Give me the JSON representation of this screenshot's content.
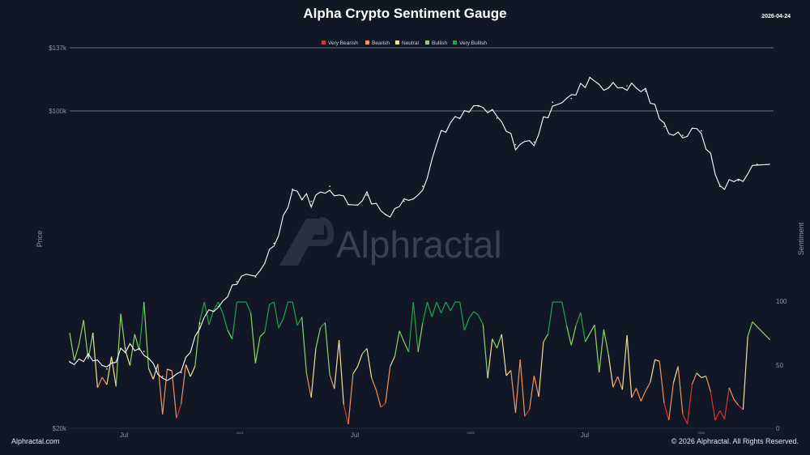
{
  "header": {
    "title": "Alpha Crypto Sentiment Gauge",
    "date": "2026-04-24"
  },
  "footer": {
    "left": "Alphractal.com",
    "right": "© 2026 Alphractal. All Rights Reserved."
  },
  "watermark": "Alphractal",
  "colors": {
    "background": "#111725",
    "price_line": "#ffffff",
    "very_bearish": "#e0312f",
    "bearish": "#f0925c",
    "neutral": "#f3df9a",
    "bullish": "#8fd46a",
    "very_bullish": "#1fa64a"
  },
  "chart_data": {
    "type": "line",
    "title": "Alpha Crypto Sentiment Gauge",
    "xlabel": "",
    "ylabel": "Price",
    "y2label": "Sentiment",
    "legend": {
      "placement": "top-center",
      "entries": [
        "Very Bearish",
        "Bearish",
        "Neutral",
        "Bullish",
        "Very Bullish"
      ]
    },
    "x_ticks": [
      "Jul",
      "2024",
      "Jul",
      "2025",
      "Jul",
      "2026"
    ],
    "y_ticks": [
      "$20k",
      "$100k",
      "$137k"
    ],
    "y2_ticks": [
      "0",
      "50",
      "100"
    ],
    "ylim": [
      20000,
      137000
    ],
    "y2lim": [
      0,
      100
    ],
    "y_scale": "log",
    "grid": "horizontal at $100k and $137k",
    "x": [
      "2023-03",
      "2023-04",
      "2023-05",
      "2023-06",
      "2023-07",
      "2023-08",
      "2023-09",
      "2023-10",
      "2023-11",
      "2023-12",
      "2024-01",
      "2024-02",
      "2024-03",
      "2024-04",
      "2024-05",
      "2024-06",
      "2024-07",
      "2024-08",
      "2024-09",
      "2024-10",
      "2024-11",
      "2024-12",
      "2025-01",
      "2025-02",
      "2025-03",
      "2025-04",
      "2025-05",
      "2025-06",
      "2025-07",
      "2025-08",
      "2025-09",
      "2025-10",
      "2025-11",
      "2025-12",
      "2026-01",
      "2026-02",
      "2026-03",
      "2026-04"
    ],
    "series": [
      {
        "name": "Price",
        "values": [
          28000,
          29000,
          27000,
          30000,
          29500,
          26000,
          26500,
          34000,
          37000,
          42000,
          43000,
          51000,
          67000,
          63000,
          68000,
          62000,
          65000,
          59000,
          63000,
          68000,
          90000,
          96000,
          102000,
          96000,
          84000,
          85000,
          104000,
          106000,
          118000,
          112000,
          113000,
          110000,
          92000,
          88000,
          90000,
          68000,
          70000,
          76000
        ]
      },
      {
        "name": "Sentiment",
        "values": [
          72,
          60,
          55,
          65,
          78,
          20,
          25,
          90,
          95,
          92,
          80,
          85,
          96,
          45,
          70,
          30,
          85,
          25,
          60,
          95,
          96,
          90,
          60,
          70,
          20,
          40,
          95,
          85,
          90,
          55,
          60,
          30,
          25,
          20,
          35,
          10,
          25,
          70
        ]
      }
    ]
  }
}
